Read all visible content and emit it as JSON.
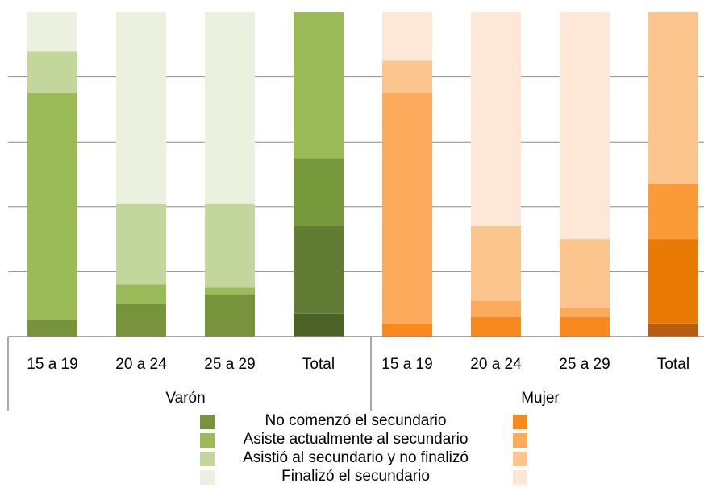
{
  "chart_data": {
    "type": "bar",
    "stacked": true,
    "normalized": true,
    "groups": [
      {
        "name": "Varón",
        "categories": [
          "15 a 19",
          "20 a 24",
          "25 a 29",
          "Total"
        ]
      },
      {
        "name": "Mujer",
        "categories": [
          "15 a 19",
          "20 a 24",
          "25 a 29",
          "Total"
        ]
      }
    ],
    "series": [
      {
        "name": "No comenzó el secundario",
        "values": [
          5,
          10,
          13,
          7,
          4,
          6,
          6,
          4
        ],
        "colors": {
          "Varón": "#77933c",
          "Mujer": "#f9891c"
        }
      },
      {
        "name": "Asiste actualmente al secundario",
        "values": [
          70,
          6,
          2,
          27,
          71,
          5,
          3,
          26
        ],
        "colors": {
          "Varón": "#9bbb59",
          "Mujer": "#fbab5b"
        }
      },
      {
        "name": "Asistió al secundario y no finalizó",
        "values": [
          13,
          25,
          26,
          21,
          10,
          23,
          21,
          17
        ],
        "colors": {
          "Varón": "#c3d69b",
          "Mujer": "#fcc58d"
        }
      },
      {
        "name": "Finalizó el secundario",
        "values": [
          12,
          59,
          59,
          45,
          15,
          66,
          70,
          53
        ],
        "colors": {
          "Varón": "#ebf1de",
          "Mujer": "#fde8d7"
        }
      }
    ],
    "total_colors": {
      "Varón": [
        "#4a6325",
        "#617b35",
        "#77993c",
        "#9bbb59"
      ],
      "Mujer": [
        "#b85c0f",
        "#e87a05",
        "#fa9a38",
        "#fcc58d"
      ]
    },
    "ylim": [
      0,
      100
    ],
    "grid": true,
    "legend": "bottom"
  }
}
